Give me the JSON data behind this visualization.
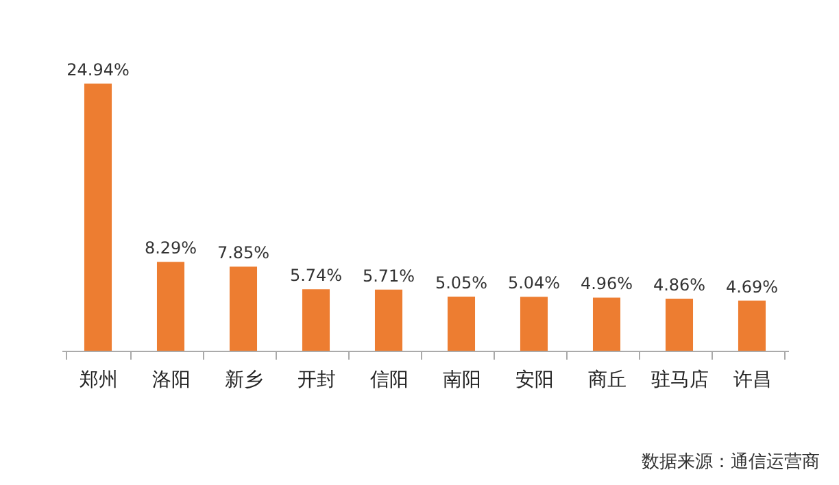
{
  "chart_data": {
    "type": "bar",
    "categories": [
      "郑州",
      "洛阳",
      "新乡",
      "开封",
      "信阳",
      "南阳",
      "安阳",
      "商丘",
      "驻马店",
      "许昌"
    ],
    "values": [
      24.94,
      8.29,
      7.85,
      5.74,
      5.71,
      5.05,
      5.04,
      4.96,
      4.86,
      4.69
    ],
    "value_labels": [
      "24.94%",
      "8.29%",
      "7.85%",
      "5.74%",
      "5.71%",
      "5.05%",
      "5.04%",
      "4.96%",
      "4.86%",
      "4.69%"
    ],
    "color": "#ed7d31",
    "annotations": [
      "数据来源：通信运营商"
    ]
  }
}
